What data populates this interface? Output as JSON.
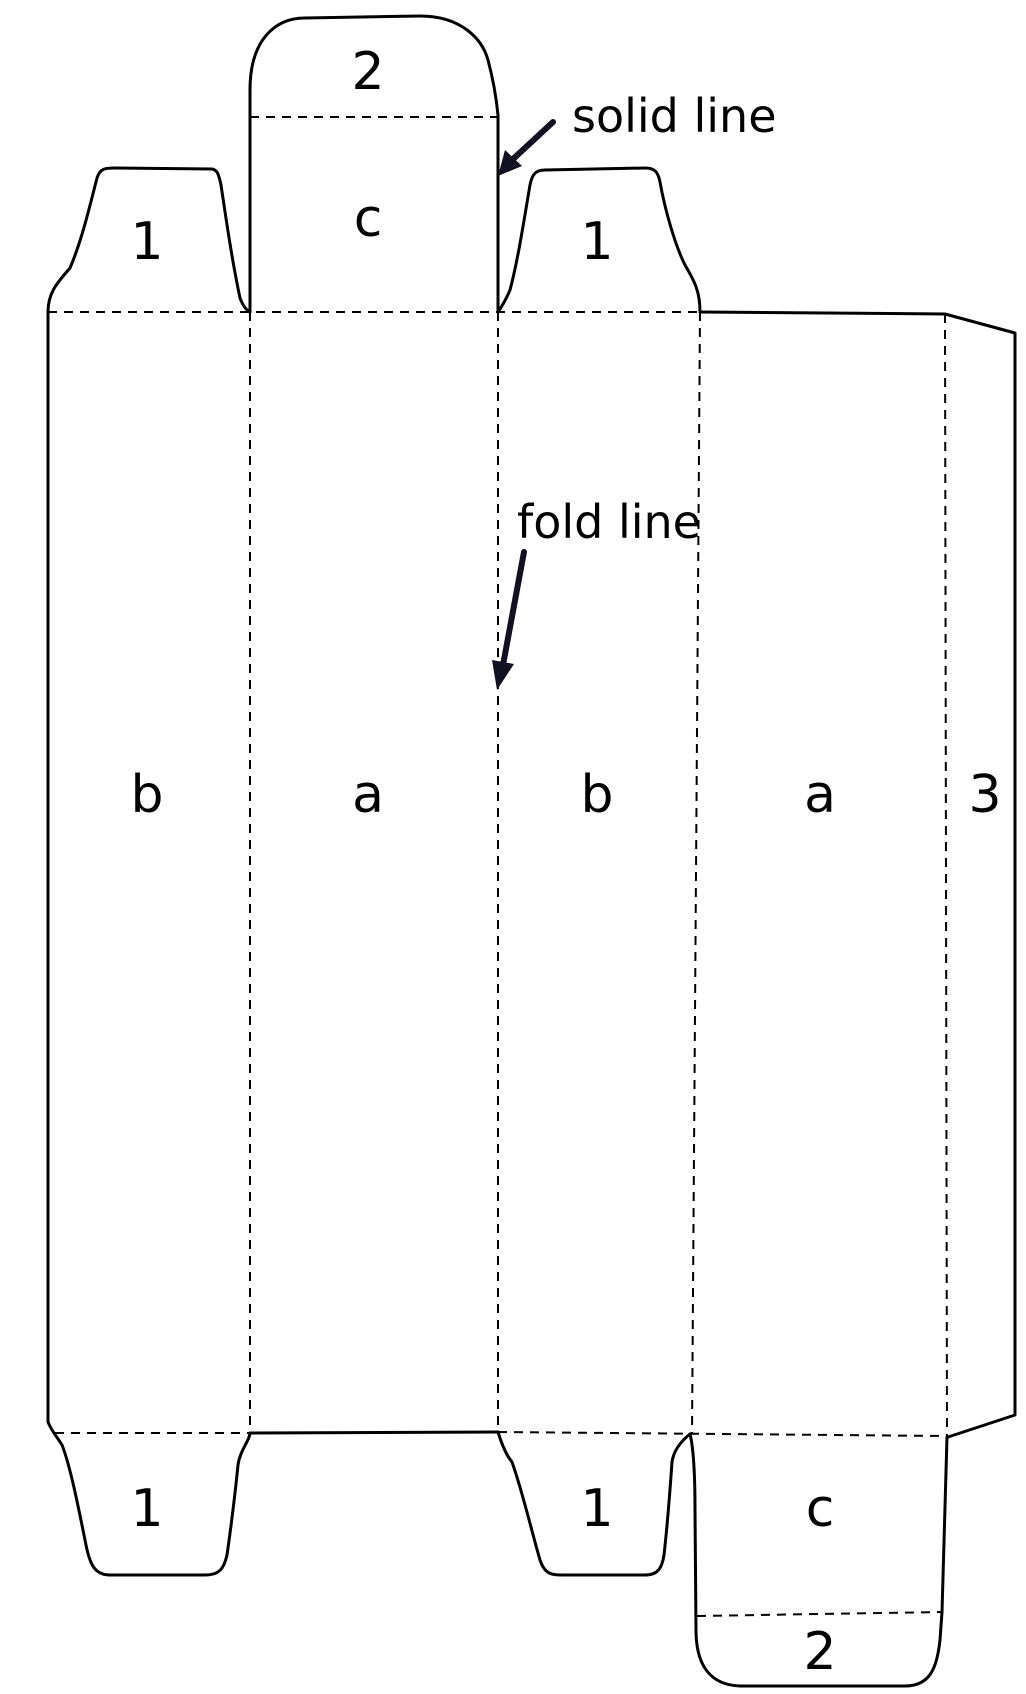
{
  "diagram": {
    "colors": {
      "line": "#000000",
      "arrow": "#111122",
      "background": "#ffffff"
    },
    "callouts": {
      "solid_line": "solid line",
      "fold_line": "fold line"
    },
    "panels": {
      "b_left": "b",
      "a_left": "a",
      "b_right": "b",
      "a_right": "a",
      "glue_side": "3"
    },
    "top_flaps": {
      "tab_left": "1",
      "lid_c": "c",
      "lid_2": "2",
      "tab_right": "1"
    },
    "bottom_flaps": {
      "tab_left": "1",
      "tab_right": "1",
      "base_c": "c",
      "base_2": "2"
    }
  }
}
